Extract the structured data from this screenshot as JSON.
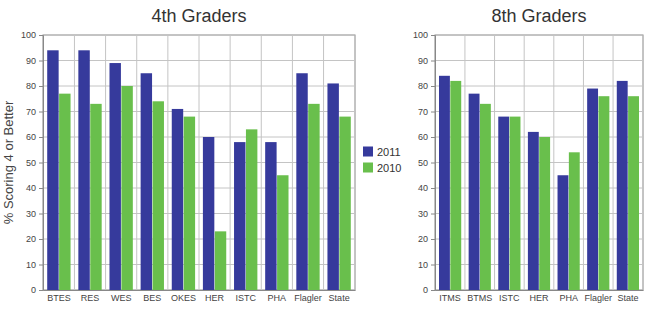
{
  "chart_data": [
    {
      "type": "bar",
      "title": "4th Graders",
      "y_label": "% Scoring 4 or Better",
      "categories": [
        "BTES",
        "RES",
        "WES",
        "BES",
        "OKES",
        "HER",
        "ISTC",
        "PHA",
        "Flagler",
        "State"
      ],
      "series": [
        {
          "name": "2011",
          "color": "#363a9c",
          "values": [
            94,
            94,
            89,
            85,
            71,
            60,
            58,
            58,
            85,
            81
          ]
        },
        {
          "name": "2010",
          "color": "#69bf4c",
          "values": [
            77,
            73,
            80,
            74,
            68,
            23,
            63,
            45,
            73,
            68
          ]
        }
      ],
      "ylim": [
        0,
        100
      ],
      "yticks": [
        0,
        10,
        20,
        30,
        40,
        50,
        60,
        70,
        80,
        90,
        100
      ],
      "grid": true,
      "legend": "right"
    },
    {
      "type": "bar",
      "title": "8th Graders",
      "categories": [
        "ITMS",
        "BTMS",
        "ISTC",
        "HER",
        "PHA",
        "Flagler",
        "State"
      ],
      "series": [
        {
          "color": "#363a9c",
          "values": [
            84,
            77,
            68,
            62,
            45,
            79,
            82
          ]
        },
        {
          "color": "#69bf4c",
          "values": [
            82,
            73,
            68,
            60,
            54,
            76,
            76
          ]
        }
      ],
      "ylim": [
        0,
        100
      ],
      "yticks": [
        0,
        10,
        20,
        30,
        40,
        50,
        60,
        70,
        80,
        90,
        100
      ],
      "grid": true
    }
  ]
}
